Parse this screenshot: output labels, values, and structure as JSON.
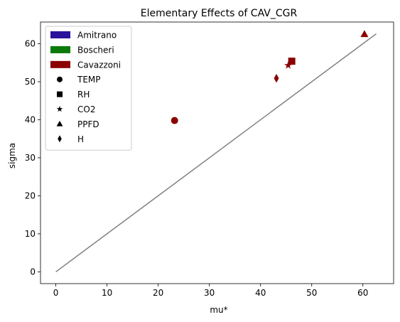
{
  "chart_data": {
    "type": "scatter",
    "title": "Elementary Effects of CAV_CGR",
    "xlabel": "mu*",
    "ylabel": "sigma",
    "xlim": [
      -3,
      66
    ],
    "ylim": [
      -3.1,
      65.7
    ],
    "xticks": [
      0,
      10,
      20,
      30,
      40,
      50,
      60
    ],
    "yticks": [
      0,
      10,
      20,
      30,
      40,
      50,
      60
    ],
    "grid": false,
    "legend_position": "top-left",
    "reference_line": {
      "x": [
        0,
        62.6
      ],
      "y": [
        0,
        62.6
      ],
      "color": "#808080"
    },
    "color_legend": [
      {
        "label": "Amitrano",
        "color": "#2b139c"
      },
      {
        "label": "Boscheri",
        "color": "#0a7a0a"
      },
      {
        "label": "Cavazzoni",
        "color": "#8b0000"
      }
    ],
    "marker_legend": [
      {
        "label": "TEMP",
        "marker": "circle"
      },
      {
        "label": "RH",
        "marker": "square"
      },
      {
        "label": "CO2",
        "marker": "star"
      },
      {
        "label": "PPFD",
        "marker": "triangle"
      },
      {
        "label": "H",
        "marker": "diamond"
      }
    ],
    "points": [
      {
        "model": "Cavazzoni",
        "variable": "TEMP",
        "marker": "circle",
        "x": 23.2,
        "y": 39.8,
        "color": "#8b0000"
      },
      {
        "model": "Cavazzoni",
        "variable": "RH",
        "marker": "square",
        "x": 46.1,
        "y": 55.4,
        "color": "#8b0000"
      },
      {
        "model": "Cavazzoni",
        "variable": "CO2",
        "marker": "star",
        "x": 45.4,
        "y": 54.3,
        "color": "#8b0000"
      },
      {
        "model": "Cavazzoni",
        "variable": "PPFD",
        "marker": "triangle",
        "x": 60.3,
        "y": 62.5,
        "color": "#8b0000"
      },
      {
        "model": "Cavazzoni",
        "variable": "H",
        "marker": "diamond",
        "x": 43.1,
        "y": 50.9,
        "color": "#8b0000"
      }
    ]
  }
}
